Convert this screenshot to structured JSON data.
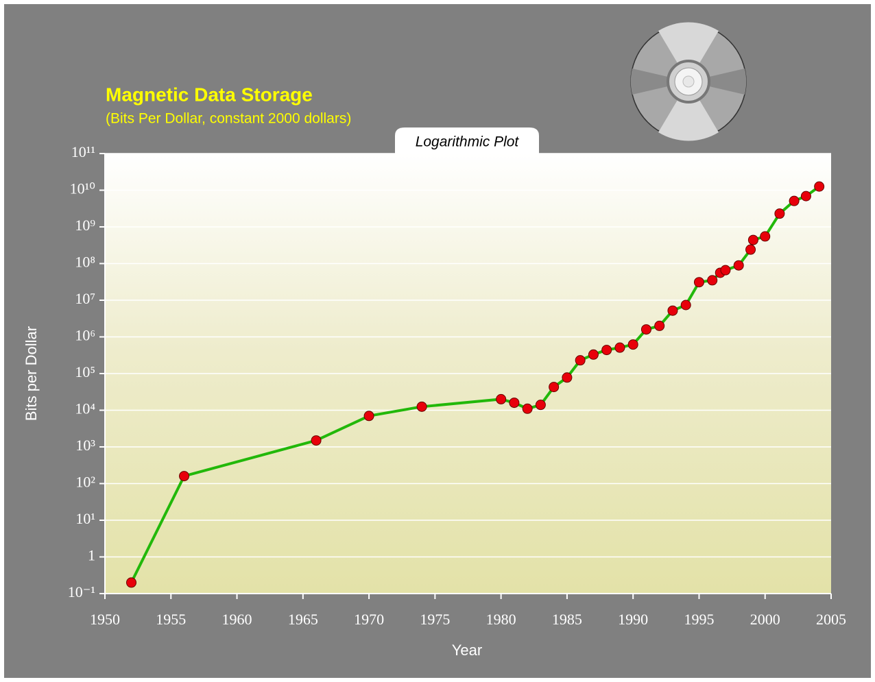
{
  "chart_data": {
    "type": "line",
    "title": "Magnetic Data Storage",
    "subtitle": "(Bits Per Dollar, constant 2000 dollars)",
    "annotation": "Logarithmic Plot",
    "xlabel": "Year",
    "ylabel": "Bits per Dollar",
    "log_y": true,
    "grid": true,
    "x": [
      1952,
      1956,
      1966,
      1970,
      1974,
      1980,
      1981,
      1982,
      1983,
      1984,
      1985,
      1986,
      1987,
      1988,
      1989,
      1990,
      1991,
      1992,
      1993,
      1994,
      1995,
      1996,
      1996.6,
      1997,
      1998,
      1998.9,
      1999.1,
      2000,
      2001.1,
      2002.2,
      2003.1,
      2004.1
    ],
    "series": [
      {
        "name": "Bits per Dollar",
        "color": "#22b80a",
        "marker_color": "#e8000b",
        "values": [
          0.2,
          160,
          1500,
          7000,
          12500,
          20000,
          16000,
          11000,
          14000,
          43000,
          78000,
          230000,
          330000,
          440000,
          510000,
          620000,
          1600000,
          2000000,
          5200000,
          7400000,
          31000000,
          35000000,
          56000000,
          66000000,
          89000000,
          240000000,
          440000000,
          550000000,
          2300000000,
          5100000000,
          6900000000,
          12600000000
        ]
      }
    ],
    "xlim": [
      1950,
      2005
    ],
    "xticks": [
      1950,
      1955,
      1960,
      1965,
      1970,
      1975,
      1980,
      1985,
      1990,
      1995,
      2000,
      2005
    ],
    "ylim": [
      0.1,
      100000000000
    ],
    "yticks": [
      {
        "value": 0.1,
        "label": "10⁻¹"
      },
      1,
      {
        "value": 10,
        "label": "10¹"
      },
      {
        "value": 100,
        "label": "10²"
      },
      {
        "value": 1000,
        "label": "10³"
      },
      {
        "value": 10000,
        "label": "10⁴"
      },
      {
        "value": 100000,
        "label": "10⁵"
      },
      {
        "value": 1000000,
        "label": "10⁶"
      },
      {
        "value": 10000000,
        "label": "10⁷"
      },
      {
        "value": 100000000,
        "label": "10⁸"
      },
      {
        "value": 1000000000,
        "label": "10⁹"
      },
      {
        "value": 10000000000,
        "label": "10¹⁰"
      },
      {
        "value": 100000000000,
        "label": "10¹¹"
      }
    ]
  }
}
